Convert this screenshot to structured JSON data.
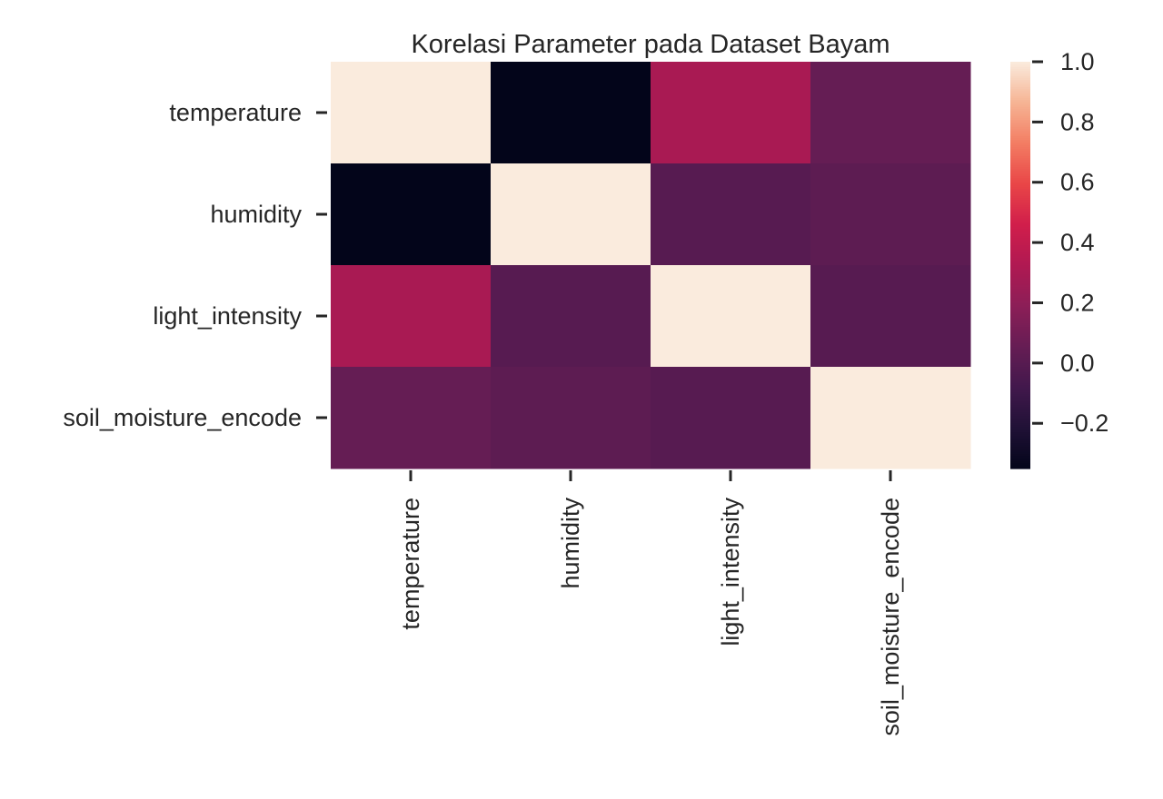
{
  "chart_data": {
    "type": "heatmap",
    "title": "Korelasi Parameter pada Dataset Bayam",
    "rows": [
      "temperature",
      "humidity",
      "light_intensity",
      "soil_moisture_encode"
    ],
    "columns": [
      "temperature",
      "humidity",
      "light_intensity",
      "soil_moisture_encode"
    ],
    "values": [
      [
        1.0,
        -0.35,
        0.3,
        0.05
      ],
      [
        -0.35,
        1.0,
        0.0,
        0.02
      ],
      [
        0.3,
        0.0,
        1.0,
        0.0
      ],
      [
        0.05,
        0.02,
        0.0,
        1.0
      ]
    ],
    "colorbar": {
      "min": -0.35,
      "max": 1.0,
      "ticks": [
        1.0,
        0.8,
        0.6,
        0.4,
        0.2,
        0.0,
        -0.2
      ],
      "tick_labels": [
        "1.0",
        "0.8",
        "0.6",
        "0.4",
        "0.2",
        "0.0",
        "−0.2"
      ]
    },
    "colormap": "rocket",
    "grid": false,
    "xlabel": "",
    "ylabel": ""
  }
}
